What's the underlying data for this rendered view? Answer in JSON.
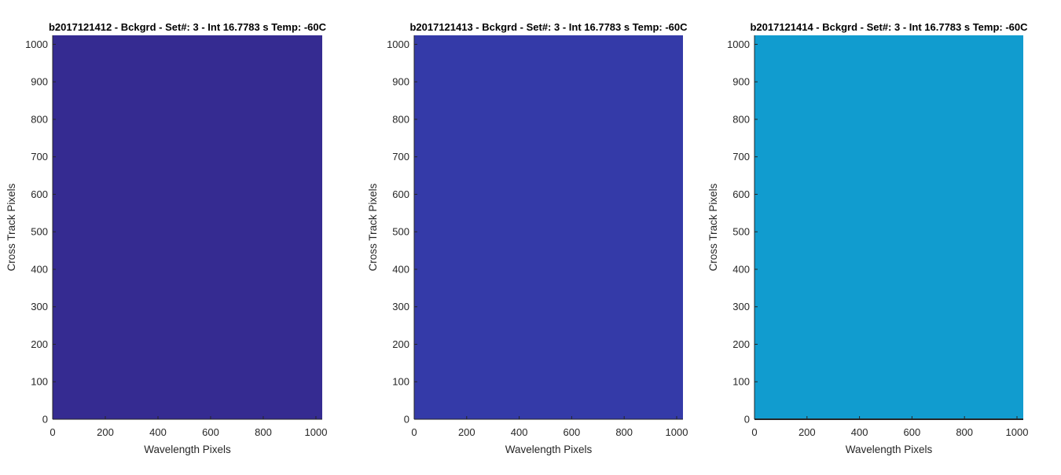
{
  "chart_data": [
    {
      "type": "heatmap",
      "title": "b2017121412 - Bckgrd - Set#: 3 - Int 16.7783 s Temp: -60C",
      "xlabel": "Wavelength Pixels",
      "ylabel": "Cross Track Pixels",
      "xlim": [
        0,
        1024
      ],
      "ylim": [
        0,
        1024
      ],
      "xticks": [
        0,
        200,
        400,
        600,
        800,
        1000
      ],
      "yticks": [
        0,
        100,
        200,
        300,
        400,
        500,
        600,
        700,
        800,
        900,
        1000
      ],
      "fill_color": "#352b91"
    },
    {
      "type": "heatmap",
      "title": "b2017121413 - Bckgrd - Set#: 3 - Int 16.7783 s Temp: -60C",
      "xlabel": "Wavelength Pixels",
      "ylabel": "Cross Track Pixels",
      "xlim": [
        0,
        1024
      ],
      "ylim": [
        0,
        1024
      ],
      "xticks": [
        0,
        200,
        400,
        600,
        800,
        1000
      ],
      "yticks": [
        0,
        100,
        200,
        300,
        400,
        500,
        600,
        700,
        800,
        900,
        1000
      ],
      "fill_color": "#343aa8"
    },
    {
      "type": "heatmap",
      "title": "b2017121414 - Bckgrd - Set#: 3 - Int 16.7783 s Temp: -60C",
      "xlabel": "Wavelength Pixels",
      "ylabel": "Cross Track Pixels",
      "xlim": [
        0,
        1024
      ],
      "ylim": [
        0,
        1024
      ],
      "xticks": [
        0,
        200,
        400,
        600,
        800,
        1000
      ],
      "yticks": [
        0,
        100,
        200,
        300,
        400,
        500,
        600,
        700,
        800,
        900,
        1000
      ],
      "fill_color": "#119ccf"
    }
  ]
}
